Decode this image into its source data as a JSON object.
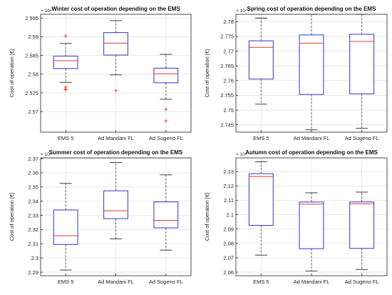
{
  "colors": {
    "box": "#3333cc",
    "median": "#e53935",
    "whisker": "#555555",
    "outlier": "#e53935",
    "grid": "#e2e2e2",
    "axis": "#222222"
  },
  "chart_data": [
    {
      "type": "boxplot",
      "title": "Winter cost of operation depending on the EMS",
      "ylabel": "Cost of operation [€]",
      "exponent_label": "× 10⁴",
      "ylim": [
        2.5645,
        2.596
      ],
      "yticks": [
        2.57,
        2.575,
        2.58,
        2.585,
        2.59,
        2.595
      ],
      "ytick_labels": [
        "2.57",
        "2.575",
        "2.58",
        "2.585",
        "2.59",
        "2.595"
      ],
      "categories": [
        "EMS 5",
        "Ad Mandani FL",
        "Ad Sugeno FL"
      ],
      "boxes": [
        {
          "whisker_low": 2.5778,
          "q1": 2.5815,
          "median": 2.5836,
          "q3": 2.5848,
          "whisker_high": 2.5882,
          "outliers": [
            2.5902,
            2.5765,
            2.576,
            2.5758
          ]
        },
        {
          "whisker_low": 2.5798,
          "q1": 2.5851,
          "median": 2.5883,
          "q3": 2.5911,
          "whisker_high": 2.5943,
          "outliers": [
            2.5756
          ]
        },
        {
          "whisker_low": 2.5733,
          "q1": 2.5777,
          "median": 2.5801,
          "q3": 2.5816,
          "whisker_high": 2.5853,
          "outliers": [
            2.5706,
            2.5675
          ]
        }
      ],
      "grid": true
    },
    {
      "type": "boxplot",
      "title": "Spring cost of operation depending on the EMS",
      "ylabel": "Cost of operation [€]",
      "exponent_label": "× 10⁴",
      "ylim": [
        2.7425,
        2.7825
      ],
      "yticks": [
        2.745,
        2.75,
        2.755,
        2.76,
        2.765,
        2.77,
        2.775,
        2.78
      ],
      "ytick_labels": [
        "2.745",
        "2.75",
        "2.755",
        "2.76",
        "2.765",
        "2.77",
        "2.775",
        "2.78"
      ],
      "categories": [
        "EMS 5",
        "Ad Mandani FL",
        "Ad Sugeno FL"
      ],
      "boxes": [
        {
          "whisker_low": 2.752,
          "q1": 2.7605,
          "median": 2.7713,
          "q3": 2.7735,
          "whisker_high": 2.7812,
          "outliers": []
        },
        {
          "whisker_low": 2.7433,
          "q1": 2.7553,
          "median": 2.7727,
          "q3": 2.7755,
          "whisker_high": 2.7825,
          "outliers": []
        },
        {
          "whisker_low": 2.7438,
          "q1": 2.7555,
          "median": 2.7733,
          "q3": 2.7757,
          "whisker_high": 2.7825,
          "outliers": []
        }
      ],
      "grid": true
    },
    {
      "type": "boxplot",
      "title": "Summer cost of operation depending on the EMS",
      "ylabel": "Cost of operation [€]",
      "exponent_label": "× 10⁴",
      "ylim": [
        2.2875,
        2.3705
      ],
      "yticks": [
        2.29,
        2.3,
        2.31,
        2.32,
        2.33,
        2.34,
        2.35,
        2.36,
        2.37
      ],
      "ytick_labels": [
        "2.29",
        "2.3",
        "2.31",
        "2.32",
        "2.33",
        "2.34",
        "2.35",
        "2.36",
        "2.37"
      ],
      "categories": [
        "EMS 5",
        "Ad Mandani FL",
        "Ad Sugeno FL"
      ],
      "boxes": [
        {
          "whisker_low": 2.2915,
          "q1": 2.3095,
          "median": 2.3157,
          "q3": 2.3338,
          "whisker_high": 2.3525,
          "outliers": []
        },
        {
          "whisker_low": 2.3135,
          "q1": 2.3277,
          "median": 2.3332,
          "q3": 2.3473,
          "whisker_high": 2.3672,
          "outliers": []
        },
        {
          "whisker_low": 2.3055,
          "q1": 2.3212,
          "median": 2.3265,
          "q3": 2.3395,
          "whisker_high": 2.3585,
          "outliers": []
        }
      ],
      "grid": true
    },
    {
      "type": "boxplot",
      "title": "Autumn cost of operation depending on the EMS",
      "ylabel": "Cost of operation [€]",
      "exponent_label": "× 10⁴",
      "ylim": [
        2.0575,
        2.1395
      ],
      "yticks": [
        2.06,
        2.07,
        2.08,
        2.09,
        2.1,
        2.11,
        2.12,
        2.13
      ],
      "ytick_labels": [
        "2.06",
        "2.07",
        "2.08",
        "2.09",
        "2.1",
        "2.11",
        "2.12",
        "2.13"
      ],
      "categories": [
        "EMS 5",
        "Ad Mandani FL",
        "Ad Sugeno FL"
      ],
      "boxes": [
        {
          "whisker_low": 2.0718,
          "q1": 2.0925,
          "median": 2.1265,
          "q3": 2.1285,
          "whisker_high": 2.1368,
          "outliers": []
        },
        {
          "whisker_low": 2.0608,
          "q1": 2.0763,
          "median": 2.1073,
          "q3": 2.1088,
          "whisker_high": 2.1152,
          "outliers": []
        },
        {
          "whisker_low": 2.0618,
          "q1": 2.0765,
          "median": 2.1075,
          "q3": 2.1088,
          "whisker_high": 2.1157,
          "outliers": []
        }
      ],
      "grid": true
    }
  ]
}
